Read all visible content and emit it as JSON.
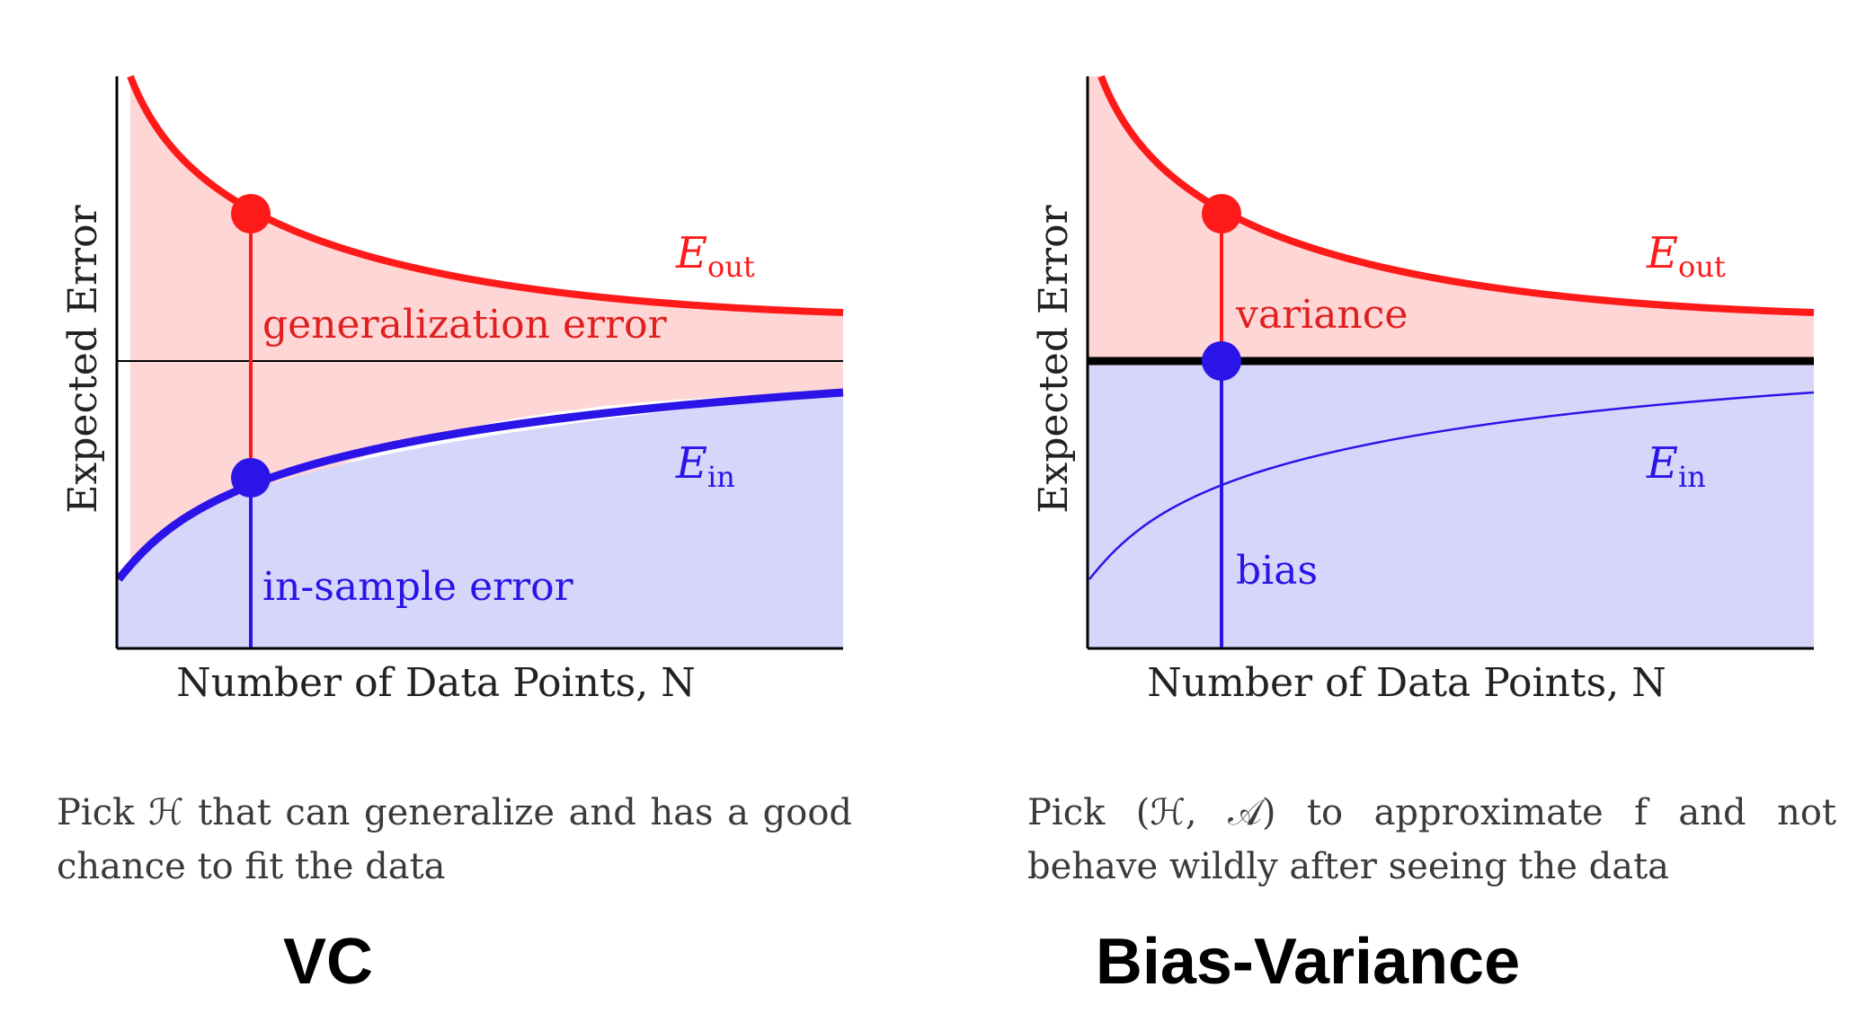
{
  "panels": [
    {
      "id": "vc",
      "y_axis_label": "Expected Error",
      "x_axis_label": "Number of Data Points, N",
      "eout_label_main": "E",
      "eout_label_sub": "out",
      "ein_label_main": "E",
      "ein_label_sub": "in",
      "upper_label": "generalization error",
      "lower_label": "in-sample error",
      "caption": "Pick ℋ that can generalize and has a good chance to fit the data",
      "title": "VC"
    },
    {
      "id": "bias-variance",
      "y_axis_label": "Expected Error",
      "x_axis_label": "Number of Data Points, N",
      "eout_label_main": "E",
      "eout_label_sub": "out",
      "ein_label_main": "E",
      "ein_label_sub": "in",
      "upper_label": "variance",
      "lower_label": "bias",
      "caption": "Pick (ℋ, 𝒜) to approximate f and not behave wildly after seeing the data",
      "title": "Bias-Variance"
    }
  ],
  "colors": {
    "eout": "#ff1a1a",
    "ein": "#2a14e8",
    "eout_fill": "#ffd6d6",
    "ein_fill": "#d6d6fb",
    "upper_text": "#e02020",
    "lower_text": "#2a14e8"
  }
}
